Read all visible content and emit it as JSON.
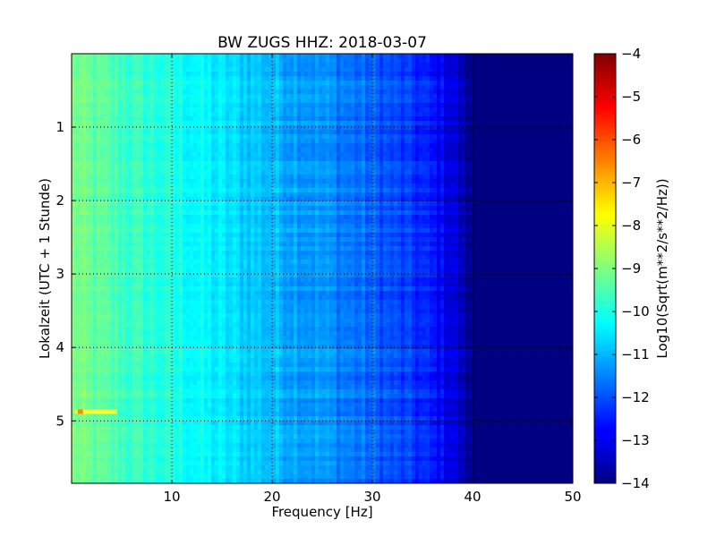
{
  "chart_data": {
    "type": "heatmap",
    "title": "BW ZUGS HHZ: 2018-03-07",
    "xlabel": "Frequency [Hz]",
    "ylabel": "Lokalzeit (UTC + 1 Stunde)",
    "xlim": [
      0,
      50
    ],
    "ylim": [
      5.85,
      0
    ],
    "x_ticks": [
      "10",
      "20",
      "30",
      "40",
      "50"
    ],
    "y_ticks": [
      "1",
      "2",
      "3",
      "4",
      "5"
    ],
    "grid": true,
    "colorbar": {
      "label": "Log10(Sqrt(m**2/s**2/Hz))",
      "colormap": "jet",
      "range": [
        -14,
        -4
      ],
      "ticks": [
        "−4",
        "−5",
        "−6",
        "−7",
        "−8",
        "−9",
        "−10",
        "−11",
        "−12",
        "−13",
        "−14"
      ]
    },
    "profile": {
      "frequency_hz": [
        0,
        1,
        5,
        10,
        15,
        20,
        25,
        30,
        35,
        38,
        39,
        40,
        50
      ],
      "value": [
        -9.0,
        -9.2,
        -9.6,
        -10.0,
        -10.5,
        -10.9,
        -11.3,
        -11.8,
        -12.4,
        -13.0,
        -13.5,
        -14.0,
        -14.0
      ]
    },
    "annotations": [
      {
        "label": "transient",
        "frequency_hz": [
          0.3,
          4.5
        ],
        "time": 4.88,
        "value": -7.5
      }
    ]
  }
}
